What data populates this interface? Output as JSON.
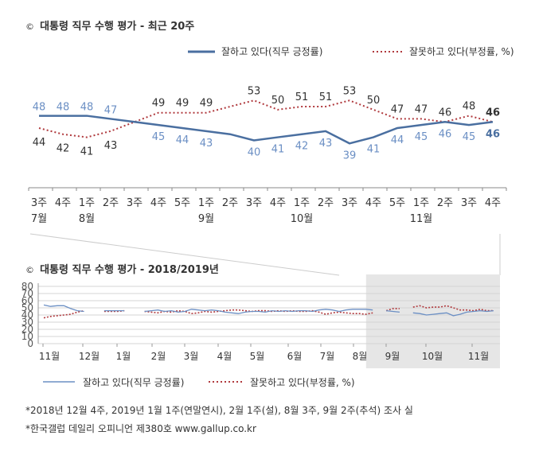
{
  "top": {
    "copyright_mark": "©",
    "title": "대통령 직무 수행 평가 - 최근 20주",
    "legend": {
      "approve": "잘하고 있다(직무 긍정률)",
      "disapprove": "잘못하고 있다(부정률, %)"
    }
  },
  "bottom": {
    "copyright_mark": "©",
    "title": "대통령 직무 수행 평가 - 2018/2019년",
    "legend": {
      "approve": "잘하고 있다(직무 긍정률)",
      "disapprove": "잘못하고 있다(부정률, %)"
    }
  },
  "notes": [
    "*2018년 12월 4주, 2019년 1월 1주(연말연시), 2월 1주(설), 8월 3주, 9월 2주(추석) 조사 실",
    "*한국갤럽 데일리 오피니언 제380호 www.gallup.co.kr"
  ],
  "colors": {
    "approve": "#4a6fa0",
    "approve_light": "#6b8fc4",
    "disapprove": "#b03a3e",
    "text": "#333333",
    "shade": "#e6e6e6"
  },
  "chart_data": [
    {
      "type": "line",
      "title": "대통령 직무 수행 평가 - 최근 20주",
      "week_labels": [
        "3주",
        "4주",
        "1주",
        "2주",
        "3주",
        "4주",
        "5주",
        "1주",
        "2주",
        "3주",
        "4주",
        "1주",
        "2주",
        "3주",
        "4주",
        "5주",
        "1주",
        "2주",
        "3주",
        "4주"
      ],
      "month_labels": [
        {
          "index": 0,
          "label": "7월"
        },
        {
          "index": 2,
          "label": "8월"
        },
        {
          "index": 7,
          "label": "9월"
        },
        {
          "index": 11,
          "label": "10월"
        },
        {
          "index": 16,
          "label": "11월"
        }
      ],
      "series": [
        {
          "name": "잘하고 있다(직무 긍정률)",
          "values": [
            48,
            48,
            48,
            47,
            46,
            45,
            44,
            43,
            42,
            40,
            41,
            42,
            43,
            39,
            41,
            44,
            45,
            46,
            45,
            46
          ]
        },
        {
          "name": "잘못하고 있다(부정률, %)",
          "values": [
            44,
            42,
            41,
            43,
            46,
            49,
            49,
            49,
            51,
            53,
            50,
            51,
            51,
            53,
            50,
            47,
            47,
            46,
            48,
            46
          ]
        }
      ],
      "labels": {
        "approve": [
          "48",
          "48",
          "48",
          "47",
          "",
          "45",
          "44",
          "43",
          "",
          "40",
          "41",
          "42",
          "43",
          "39",
          "41",
          "44",
          "45",
          "46",
          "45",
          "46"
        ],
        "disapprove": [
          "44",
          "42",
          "41",
          "43",
          "",
          "49",
          "49",
          "49",
          "",
          "53",
          "50",
          "51",
          "51",
          "53",
          "50",
          "47",
          "47",
          "46",
          "48",
          "46"
        ]
      },
      "ylim": [
        30,
        65
      ],
      "legend_position": "top-right"
    },
    {
      "type": "line",
      "title": "대통령 직무 수행 평가 - 2018/2019년",
      "y_ticks": [
        "0",
        "10",
        "20",
        "30",
        "40",
        "50",
        "60",
        "70",
        "80"
      ],
      "ylim": [
        0,
        80
      ],
      "x_ticks": [
        "11월",
        "12월",
        "1월",
        "2월",
        "3월",
        "4월",
        "5월",
        "6월",
        "7월",
        "8월",
        "9월",
        "10월",
        "11월"
      ],
      "grid": true,
      "legend_position": "bottom",
      "highlight": "last 20 weeks (shaded)",
      "series": [
        {
          "name": "잘하고 있다(직무 긍정률)",
          "segments": [
            [
              [
                0,
                54
              ],
              [
                1,
                52
              ],
              [
                2,
                53
              ],
              [
                3,
                53
              ],
              [
                4,
                49
              ],
              [
                5,
                46
              ],
              [
                6,
                45
              ]
            ],
            [
              [
                9,
                46
              ],
              [
                10,
                46
              ],
              [
                11,
                46
              ],
              [
                12,
                46
              ]
            ],
            [
              [
                15,
                45
              ],
              [
                16,
                46
              ],
              [
                17,
                47
              ],
              [
                18,
                45
              ],
              [
                19,
                46
              ],
              [
                20,
                44
              ],
              [
                21,
                45
              ],
              [
                22,
                48
              ],
              [
                23,
                47
              ],
              [
                24,
                46
              ],
              [
                25,
                47
              ],
              [
                26,
                46
              ],
              [
                27,
                44
              ],
              [
                28,
                43
              ],
              [
                29,
                42
              ],
              [
                30,
                44
              ],
              [
                31,
                45
              ],
              [
                32,
                45
              ],
              [
                33,
                44
              ],
              [
                34,
                46
              ],
              [
                35,
                45
              ],
              [
                36,
                46
              ],
              [
                37,
                45
              ],
              [
                38,
                46
              ],
              [
                39,
                46
              ],
              [
                40,
                45
              ],
              [
                41,
                47
              ],
              [
                42,
                48
              ],
              [
                43,
                47
              ],
              [
                44,
                45
              ],
              [
                45,
                47
              ],
              [
                46,
                48
              ],
              [
                47,
                48
              ],
              [
                48,
                48
              ],
              [
                49,
                47
              ]
            ],
            [
              [
                51,
                46
              ],
              [
                52,
                45
              ],
              [
                53,
                44
              ]
            ],
            [
              [
                55,
                43
              ],
              [
                56,
                42
              ],
              [
                57,
                40
              ],
              [
                58,
                41
              ],
              [
                59,
                42
              ],
              [
                60,
                43
              ],
              [
                61,
                39
              ],
              [
                62,
                41
              ],
              [
                63,
                44
              ],
              [
                64,
                45
              ],
              [
                65,
                46
              ],
              [
                66,
                45
              ],
              [
                67,
                46
              ]
            ]
          ]
        },
        {
          "name": "잘못하고 있다(부정률, %)",
          "segments": [
            [
              [
                0,
                36
              ],
              [
                1,
                38
              ],
              [
                2,
                39
              ],
              [
                3,
                40
              ],
              [
                4,
                41
              ],
              [
                5,
                44
              ],
              [
                6,
                46
              ]
            ],
            [
              [
                9,
                45
              ],
              [
                10,
                45
              ],
              [
                11,
                45
              ],
              [
                12,
                46
              ]
            ],
            [
              [
                15,
                45
              ],
              [
                16,
                44
              ],
              [
                17,
                43
              ],
              [
                18,
                45
              ],
              [
                19,
                44
              ],
              [
                20,
                46
              ],
              [
                21,
                45
              ],
              [
                22,
                42
              ],
              [
                23,
                43
              ],
              [
                24,
                45
              ],
              [
                25,
                44
              ],
              [
                26,
                45
              ],
              [
                27,
                46
              ],
              [
                28,
                47
              ],
              [
                29,
                47
              ],
              [
                30,
                46
              ],
              [
                31,
                45
              ],
              [
                32,
                46
              ],
              [
                33,
                46
              ],
              [
                34,
                45
              ],
              [
                35,
                46
              ],
              [
                36,
                45
              ],
              [
                37,
                46
              ],
              [
                38,
                45
              ],
              [
                39,
                45
              ],
              [
                40,
                46
              ],
              [
                41,
                44
              ],
              [
                42,
                41
              ],
              [
                43,
                43
              ],
              [
                44,
                44
              ],
              [
                45,
                43
              ],
              [
                46,
                42
              ],
              [
                47,
                42
              ],
              [
                48,
                41
              ],
              [
                49,
                43
              ]
            ],
            [
              [
                51,
                46
              ],
              [
                52,
                49
              ],
              [
                53,
                49
              ]
            ],
            [
              [
                55,
                51
              ],
              [
                56,
                53
              ],
              [
                57,
                50
              ],
              [
                58,
                51
              ],
              [
                59,
                51
              ],
              [
                60,
                53
              ],
              [
                61,
                50
              ],
              [
                62,
                47
              ],
              [
                63,
                47
              ],
              [
                64,
                46
              ],
              [
                65,
                48
              ],
              [
                66,
                46
              ],
              [
                67,
                46
              ]
            ]
          ]
        }
      ]
    }
  ]
}
